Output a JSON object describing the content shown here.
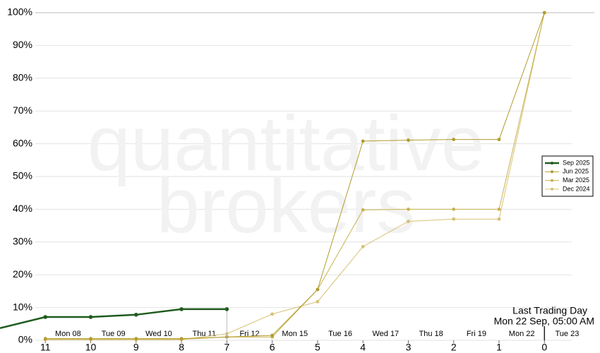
{
  "chart_data": {
    "type": "line",
    "watermark": [
      "quantitative",
      "brokers"
    ],
    "annotation": [
      "Last Trading Day",
      "Mon 22 Sep, 05:00 AM"
    ],
    "xlim": [
      12,
      -1.1
    ],
    "ylim": [
      0,
      100
    ],
    "xticks": [
      11,
      10,
      9,
      8,
      7,
      6,
      5,
      4,
      3,
      2,
      1,
      0
    ],
    "yticks": [
      {
        "value": 0,
        "label": "0%"
      },
      {
        "value": 10,
        "label": "10%"
      },
      {
        "value": 20,
        "label": "20%"
      },
      {
        "value": 30,
        "label": "30%"
      },
      {
        "value": 40,
        "label": "40%"
      },
      {
        "value": 50,
        "label": "50%"
      },
      {
        "value": 60,
        "label": "60%"
      },
      {
        "value": 70,
        "label": "70%"
      },
      {
        "value": 80,
        "label": "80%"
      },
      {
        "value": 90,
        "label": "90%"
      },
      {
        "value": 100,
        "label": "100%"
      }
    ],
    "date_labels": [
      "Mon 08",
      "Tue 09",
      "Wed 10",
      "Thu 11",
      "Fri 12",
      "Mon 15",
      "Tue 16",
      "Wed 17",
      "Thu 18",
      "Fri 19",
      "Mon 22",
      "Tue 23"
    ],
    "grid": true,
    "legend_position": "right",
    "series": [
      {
        "name": "Sep 2025",
        "color": "#1f5c1f",
        "x": [
          12,
          11,
          10,
          9,
          8,
          7
        ],
        "values": [
          3.7,
          7.1,
          7.1,
          7.8,
          9.5,
          9.5
        ]
      },
      {
        "name": "Jun 2025",
        "color": "#b39b2e",
        "x": [
          11,
          10,
          9,
          8,
          7,
          6,
          5,
          4,
          3,
          2,
          1,
          0
        ],
        "values": [
          0.5,
          0.5,
          0.5,
          0.5,
          1,
          1.5,
          15.5,
          60.8,
          61.1,
          61.3,
          61.3,
          100
        ]
      },
      {
        "name": "Mar 2025",
        "color": "#c9b24f",
        "x": [
          11,
          10,
          9,
          8,
          7,
          6,
          5,
          4,
          3,
          2,
          1,
          0
        ],
        "values": [
          0.3,
          0.3,
          0.3,
          0.3,
          1,
          1,
          15.5,
          39.8,
          40,
          40,
          40,
          100
        ]
      },
      {
        "name": "Dec 2024",
        "color": "#d6c275",
        "x": [
          11,
          10,
          9,
          8,
          7,
          6,
          5,
          4,
          3,
          2,
          1,
          0
        ],
        "values": [
          0.2,
          0.2,
          0.2,
          0.2,
          2,
          8,
          11.8,
          28.6,
          36.3,
          37,
          37,
          100
        ]
      }
    ]
  }
}
